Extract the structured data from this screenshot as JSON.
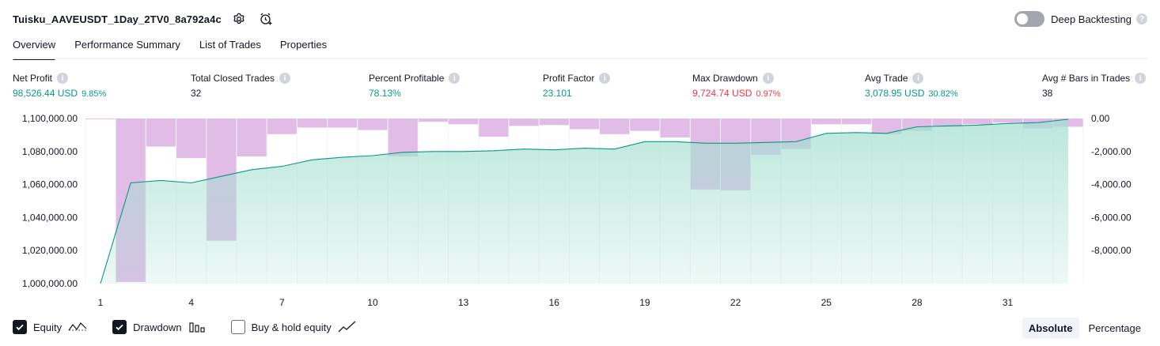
{
  "header": {
    "strategy_title": "Tuisku_AAVEUSDT_1Day_2TV0_8a792a4c",
    "settings_icon": "gear-icon",
    "alert_icon": "alarm-plus-icon",
    "deep_backtesting_label": "Deep Backtesting",
    "deep_backtesting_on": false,
    "help_icon": "question-icon"
  },
  "tabs": [
    {
      "label": "Overview",
      "active": true
    },
    {
      "label": "Performance Summary",
      "active": false
    },
    {
      "label": "List of Trades",
      "active": false
    },
    {
      "label": "Properties",
      "active": false
    }
  ],
  "metrics": [
    {
      "label": "Net Profit",
      "value": "98,526.44 USD",
      "pct": "9.85%",
      "tone": "green"
    },
    {
      "label": "Total Closed Trades",
      "value": "32",
      "pct": "",
      "tone": "dark"
    },
    {
      "label": "Percent Profitable",
      "value": "78.13%",
      "pct": "",
      "tone": "green"
    },
    {
      "label": "Profit Factor",
      "value": "23.101",
      "pct": "",
      "tone": "green"
    },
    {
      "label": "Max Drawdown",
      "value": "9,724.74 USD",
      "pct": "0.97%",
      "tone": "red"
    },
    {
      "label": "Avg Trade",
      "value": "3,078.95 USD",
      "pct": "30.82%",
      "tone": "green"
    },
    {
      "label": "Avg # Bars in Trades",
      "value": "38",
      "pct": "",
      "tone": "dark"
    }
  ],
  "chart_data": {
    "type": "line",
    "x_ticks": [
      "1",
      "4",
      "7",
      "10",
      "13",
      "16",
      "19",
      "22",
      "25",
      "28",
      "31"
    ],
    "y_left_ticks": [
      "1,100,000.00",
      "1,080,000.00",
      "1,060,000.00",
      "1,040,000.00",
      "1,020,000.00",
      "1,000,000.00"
    ],
    "y_right_ticks": [
      "0.00",
      "-2,000.00",
      "-4,000.00",
      "-6,000.00",
      "-8,000.00"
    ],
    "y_left_range": [
      1000000,
      1100000
    ],
    "y_right_range": [
      -10000,
      0
    ],
    "x_range": [
      1,
      33
    ],
    "series": [
      {
        "name": "Equity",
        "color": "#089981",
        "x": [
          1,
          2,
          3,
          4,
          5,
          6,
          7,
          8,
          9,
          10,
          11,
          12,
          13,
          14,
          15,
          16,
          17,
          18,
          19,
          20,
          21,
          22,
          23,
          24,
          25,
          26,
          27,
          28,
          29,
          30,
          31,
          32,
          33
        ],
        "values": [
          1000000,
          1061000,
          1062500,
          1061000,
          1065000,
          1069000,
          1071000,
          1075000,
          1076500,
          1077500,
          1079500,
          1080000,
          1080000,
          1080500,
          1081500,
          1081000,
          1082000,
          1081500,
          1086000,
          1086000,
          1085000,
          1085000,
          1085500,
          1086000,
          1091000,
          1091500,
          1091000,
          1095000,
          1095500,
          1096000,
          1097000,
          1097500,
          1099500
        ]
      },
      {
        "name": "Drawdown",
        "color": "#ce93d8",
        "x": [
          1,
          2,
          3,
          4,
          5,
          6,
          7,
          8,
          9,
          10,
          11,
          12,
          13,
          14,
          15,
          16,
          17,
          18,
          19,
          20,
          21,
          22,
          23,
          24,
          25,
          26,
          27,
          28,
          29,
          30,
          31,
          32,
          33
        ],
        "values": [
          -50,
          -9900,
          -1700,
          -2400,
          -7400,
          -2300,
          -950,
          -550,
          -550,
          -700,
          -2300,
          -200,
          -350,
          -1100,
          -450,
          -400,
          -650,
          -950,
          -750,
          -1150,
          -4300,
          -4350,
          -2200,
          -1850,
          -350,
          -350,
          -950,
          -750,
          -500,
          -350,
          -250,
          -600,
          -500
        ]
      }
    ],
    "grid": true
  },
  "legend": [
    {
      "label": "Equity",
      "checked": true,
      "icon": "equity-line-icon"
    },
    {
      "label": "Drawdown",
      "checked": true,
      "icon": "drawdown-bars-icon"
    },
    {
      "label": "Buy & hold equity",
      "checked": false,
      "icon": "buy-hold-line-icon"
    }
  ],
  "mode": {
    "absolute_label": "Absolute",
    "percentage_label": "Percentage",
    "selected": "Absolute"
  }
}
